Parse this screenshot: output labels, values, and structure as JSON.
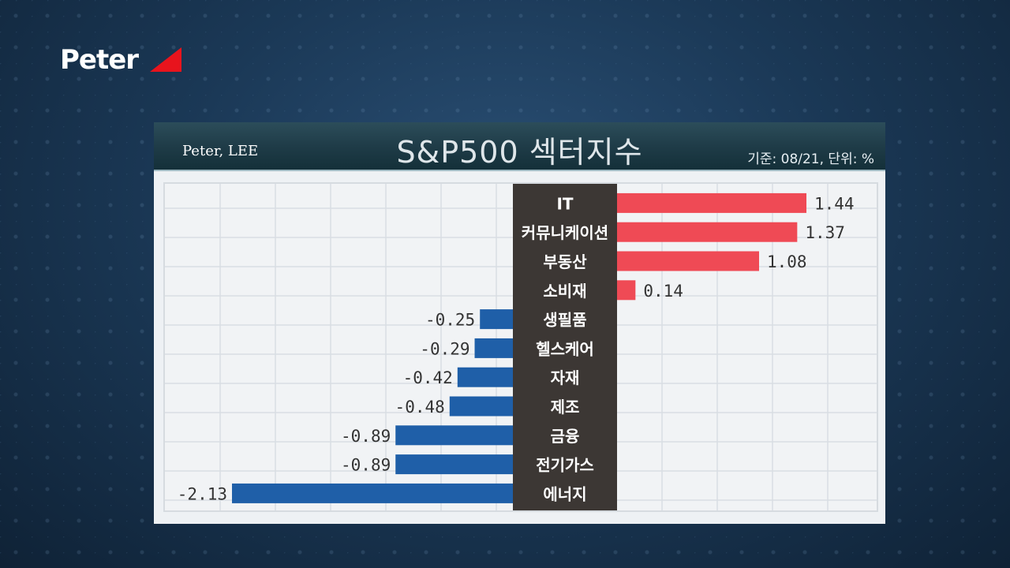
{
  "logo": {
    "text": "Peter"
  },
  "header": {
    "credit": "Peter, LEE",
    "title": "S&P500 섹터지수",
    "unit": "기준: 08/21, 단위: %"
  },
  "colors": {
    "positive": "#ef4a55",
    "negative": "#1f5fa8",
    "label_bg": "#3c3734"
  },
  "chart_data": {
    "type": "bar",
    "orientation": "horizontal",
    "title": "S&P500 섹터지수",
    "categories": [
      "IT",
      "커뮤니케이션",
      "부동산",
      "소비재",
      "생필품",
      "헬스케어",
      "자재",
      "제조",
      "금융",
      "전기가스",
      "에너지"
    ],
    "values": [
      1.44,
      1.37,
      1.08,
      0.14,
      -0.25,
      -0.29,
      -0.42,
      -0.48,
      -0.89,
      -0.89,
      -2.13
    ],
    "value_labels": [
      "1.44",
      "1.37",
      "1.08",
      "0.14",
      "-0.25",
      "-0.29",
      "-0.42",
      "-0.48",
      "-0.89",
      "-0.89",
      "-2.13"
    ],
    "xlim": [
      -2.13,
      1.44
    ],
    "grid": true,
    "legend": "none"
  }
}
